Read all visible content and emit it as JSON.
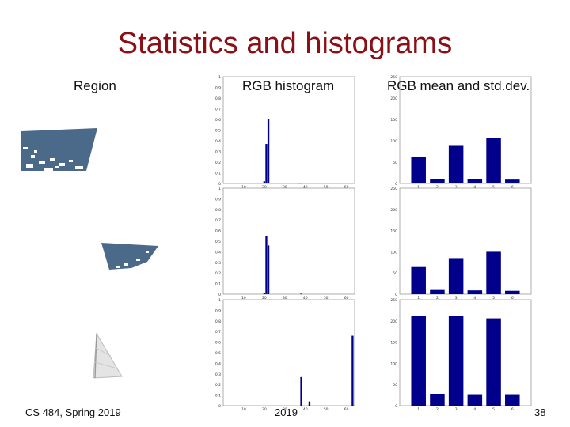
{
  "slide": {
    "title": "Statistics and histograms",
    "headers": {
      "region": "Region",
      "histogram": "RGB histogram",
      "meanstd": "RGB mean and std.dev."
    },
    "footer_left": "CS 484, Spring 2019",
    "footer_center": "2019",
    "page_number": "38"
  },
  "colors": {
    "title": "#8b1016",
    "bar": "#00008b",
    "frame": "#999999",
    "region_blue": "#4b6a8a",
    "region_white": "#e6e6e6"
  },
  "chart_data": [
    {
      "type": "bar",
      "id": "hist-1",
      "x": [
        20,
        21,
        22,
        37,
        38
      ],
      "y": [
        0.02,
        0.37,
        0.6,
        0.005,
        0.005
      ],
      "xlim": [
        0,
        64
      ],
      "ylim": [
        0,
        1
      ],
      "xticks": [
        "10",
        "20",
        "30",
        "40",
        "50",
        "60"
      ],
      "yticks": [
        "0",
        "0.1",
        "0.2",
        "0.3",
        "0.4",
        "0.5",
        "0.6",
        "0.7",
        "0.8",
        "0.9",
        "1"
      ]
    },
    {
      "type": "bar",
      "id": "hist-2",
      "x": [
        20,
        21,
        22,
        38
      ],
      "y": [
        0.01,
        0.55,
        0.46,
        0.005
      ],
      "xlim": [
        0,
        64
      ],
      "ylim": [
        0,
        1
      ],
      "xticks": [
        "10",
        "20",
        "30",
        "40",
        "50",
        "60"
      ],
      "yticks": [
        "0",
        "0.1",
        "0.2",
        "0.3",
        "0.4",
        "0.5",
        "0.6",
        "0.7",
        "0.8",
        "0.9",
        "1"
      ]
    },
    {
      "type": "bar",
      "id": "hist-3",
      "x": [
        38,
        42,
        63
      ],
      "y": [
        0.27,
        0.04,
        0.66
      ],
      "xlim": [
        0,
        64
      ],
      "ylim": [
        0,
        1
      ],
      "xticks": [
        "10",
        "20",
        "30",
        "40",
        "50",
        "60"
      ],
      "yticks": [
        "0",
        "0.1",
        "0.2",
        "0.3",
        "0.4",
        "0.5",
        "0.6",
        "0.7",
        "0.8",
        "0.9",
        "1"
      ]
    },
    {
      "type": "bar",
      "id": "stats-1",
      "categories": [
        "1",
        "2",
        "3",
        "4",
        "5",
        "6"
      ],
      "values": [
        63,
        11,
        88,
        11,
        107,
        9
      ],
      "ylim": [
        0,
        250
      ],
      "yticks": [
        "0",
        "50",
        "100",
        "150",
        "200",
        "250"
      ]
    },
    {
      "type": "bar",
      "id": "stats-2",
      "categories": [
        "1",
        "2",
        "3",
        "4",
        "5",
        "6"
      ],
      "values": [
        64,
        10,
        85,
        9,
        100,
        8
      ],
      "ylim": [
        0,
        250
      ],
      "yticks": [
        "0",
        "50",
        "100",
        "150",
        "200",
        "250"
      ]
    },
    {
      "type": "bar",
      "id": "stats-3",
      "categories": [
        "1",
        "2",
        "3",
        "4",
        "5",
        "6"
      ],
      "values": [
        211,
        28,
        212,
        27,
        206,
        27
      ],
      "ylim": [
        0,
        250
      ],
      "yticks": [
        "0",
        "50",
        "100",
        "150",
        "200",
        "250"
      ]
    }
  ]
}
